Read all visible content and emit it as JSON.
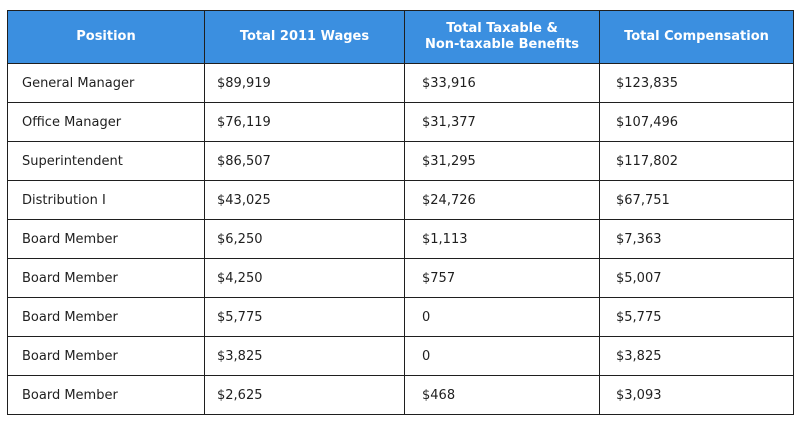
{
  "table": {
    "headers": {
      "position": "Position",
      "wages": "Total 2011 Wages",
      "benefits_line1": "Total Taxable &",
      "benefits_line2": "Non-taxable Benefits",
      "total": "Total Compensation"
    },
    "rows": [
      {
        "position": "General Manager",
        "wages": "$89,919",
        "benefits": "$33,916",
        "total": "$123,835"
      },
      {
        "position": "Office Manager",
        "wages": "$76,119",
        "benefits": "$31,377",
        "total": "$107,496"
      },
      {
        "position": "Superintendent",
        "wages": "$86,507",
        "benefits": "$31,295",
        "total": "$117,802"
      },
      {
        "position": "Distribution I",
        "wages": "$43,025",
        "benefits": "$24,726",
        "total": "$67,751"
      },
      {
        "position": "Board Member",
        "wages": "$6,250",
        "benefits": "$1,113",
        "total": "$7,363"
      },
      {
        "position": "Board Member",
        "wages": "$4,250",
        "benefits": "$757",
        "total": "$5,007"
      },
      {
        "position": "Board Member",
        "wages": "$5,775",
        "benefits": "0",
        "total": "$5,775"
      },
      {
        "position": "Board Member",
        "wages": "$3,825",
        "benefits": "0",
        "total": "$3,825"
      },
      {
        "position": "Board Member",
        "wages": "$2,625",
        "benefits": "$468",
        "total": "$3,093"
      }
    ],
    "colors": {
      "header_bg": "#3b8fe0",
      "header_text": "#ffffff",
      "border": "#1f1f1f"
    }
  }
}
